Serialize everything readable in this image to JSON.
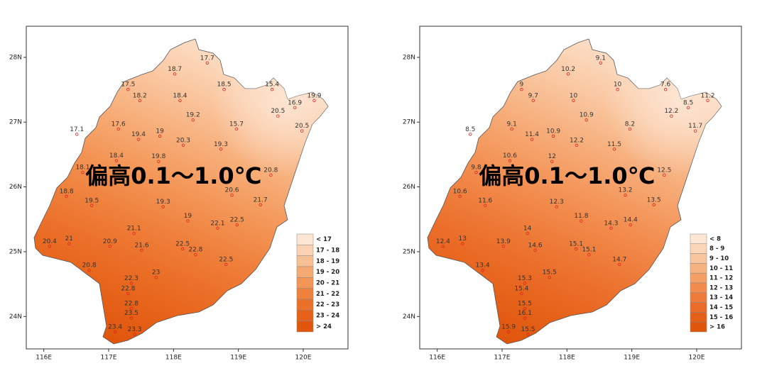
{
  "chart_data": [
    {
      "type": "map",
      "xlim": [
        115.73,
        120.69
      ],
      "ylim": [
        23.5,
        28.48
      ],
      "xticks": [
        {
          "value": 116,
          "label": "116E"
        },
        {
          "value": 117,
          "label": "117E"
        },
        {
          "value": 118,
          "label": "118E"
        },
        {
          "value": 119,
          "label": "119E"
        },
        {
          "value": 120,
          "label": "120E"
        }
      ],
      "yticks": [
        {
          "value": 24,
          "label": "24N"
        },
        {
          "value": 25,
          "label": "25N"
        },
        {
          "value": 26,
          "label": "26N"
        },
        {
          "value": 27,
          "label": "27N"
        },
        {
          "value": 28,
          "label": "28N"
        }
      ],
      "annotation": "偏高0.1～1.0℃",
      "legend_position": "bottom-right",
      "legend": {
        "labels": [
          "< 17",
          "17 - 18",
          "18 - 19",
          "19 - 20",
          "20 - 21",
          "21 - 22",
          "22 - 23",
          "23 - 24",
          "> 24"
        ],
        "colors": [
          "#fde6d4",
          "#fbd3b4",
          "#f9bf94",
          "#f6aa73",
          "#f39556",
          "#ef813d",
          "#eb7029",
          "#e66219",
          "#e0560c"
        ]
      },
      "stations": {
        "x": [
          118.52,
          118.02,
          117.3,
          117.48,
          118.1,
          118.78,
          119.52,
          120.17,
          118.3,
          119.61,
          119.87,
          116.51,
          117.15,
          117.46,
          117.79,
          118.15,
          118.97,
          118.73,
          119.98,
          117.12,
          117.77,
          116.6,
          116.35,
          116.74,
          118.9,
          117.84,
          119.5,
          119.34,
          118.22,
          118.68,
          118.98,
          117.39,
          116.09,
          116.39,
          117.02,
          117.51,
          118.14,
          118.34,
          118.81,
          116.7,
          117.35,
          117.73,
          117.3,
          117.35,
          117.35,
          117.1,
          117.4
        ],
        "y": [
          27.99,
          27.82,
          27.58,
          27.41,
          27.41,
          27.58,
          27.58,
          27.41,
          27.11,
          27.17,
          27.3,
          26.89,
          26.97,
          26.81,
          26.86,
          26.72,
          26.97,
          26.66,
          26.94,
          26.48,
          26.47,
          26.3,
          25.93,
          25.79,
          25.95,
          25.77,
          26.26,
          25.8,
          25.55,
          25.44,
          25.49,
          25.36,
          25.16,
          25.2,
          25.16,
          25.1,
          25.12,
          25.03,
          24.88,
          24.79,
          24.59,
          24.68,
          24.43,
          24.2,
          24.05,
          23.84,
          23.8
        ],
        "values": [
          17.7,
          18.7,
          17.5,
          18.2,
          18.4,
          18.5,
          15.4,
          19.9,
          19.2,
          20.5,
          16.9,
          17.1,
          17.6,
          19.4,
          19,
          20.3,
          15.7,
          19.3,
          20.5,
          18.4,
          19.8,
          18.1,
          18.8,
          19.5,
          20.6,
          19.3,
          20.8,
          21.7,
          19,
          22.1,
          22.5,
          21.1,
          20.4,
          21,
          20.9,
          21.6,
          22.5,
          22.8,
          22.5,
          20.8,
          22.3,
          23,
          22.8,
          22.8,
          23.5,
          23.4,
          23.3
        ]
      }
    },
    {
      "type": "map",
      "xlim": [
        115.73,
        120.69
      ],
      "ylim": [
        23.5,
        28.48
      ],
      "xticks": [
        {
          "value": 116,
          "label": "116E"
        },
        {
          "value": 117,
          "label": "117E"
        },
        {
          "value": 118,
          "label": "118E"
        },
        {
          "value": 119,
          "label": "119E"
        },
        {
          "value": 120,
          "label": "120E"
        }
      ],
      "yticks": [
        {
          "value": 24,
          "label": "24N"
        },
        {
          "value": 25,
          "label": "25N"
        },
        {
          "value": 26,
          "label": "26N"
        },
        {
          "value": 27,
          "label": "27N"
        },
        {
          "value": 28,
          "label": "28N"
        }
      ],
      "annotation": "偏高0.1～1.0℃",
      "legend_position": "bottom-right",
      "legend": {
        "labels": [
          "< 8",
          "8 - 9",
          "9 - 10",
          "10 - 11",
          "11 - 12",
          "12 - 13",
          "13 - 14",
          "14 - 15",
          "15 - 16",
          "> 16"
        ],
        "colors": [
          "#fde6d4",
          "#fbd6b9",
          "#f9c59e",
          "#f7b281",
          "#f59f66",
          "#f28c4e",
          "#ee7b39",
          "#ea6c27",
          "#e56118",
          "#e0560c"
        ]
      },
      "stations": {
        "x": [
          118.52,
          118.02,
          117.3,
          117.48,
          118.1,
          118.78,
          119.52,
          120.17,
          118.3,
          119.61,
          119.87,
          116.51,
          117.15,
          117.46,
          117.79,
          118.15,
          118.97,
          118.73,
          119.98,
          117.12,
          117.77,
          116.6,
          116.35,
          116.74,
          118.9,
          117.84,
          119.5,
          119.34,
          118.22,
          118.68,
          118.98,
          117.39,
          116.09,
          116.39,
          117.02,
          117.51,
          118.14,
          118.34,
          118.81,
          116.7,
          117.35,
          117.73,
          117.3,
          117.35,
          117.35,
          117.1,
          117.4
        ],
        "y": [
          27.99,
          27.82,
          27.58,
          27.41,
          27.41,
          27.58,
          27.58,
          27.41,
          27.11,
          27.17,
          27.3,
          26.89,
          26.97,
          26.81,
          26.86,
          26.72,
          26.97,
          26.66,
          26.94,
          26.48,
          26.47,
          26.3,
          25.93,
          25.79,
          25.95,
          25.77,
          26.26,
          25.8,
          25.55,
          25.44,
          25.49,
          25.36,
          25.16,
          25.2,
          25.16,
          25.1,
          25.12,
          25.03,
          24.88,
          24.79,
          24.59,
          24.68,
          24.43,
          24.2,
          24.05,
          23.84,
          23.8
        ],
        "values": [
          9.1,
          10.2,
          9,
          9.7,
          10,
          10,
          7.6,
          11.2,
          10.9,
          12.2,
          8.5,
          8.5,
          9.1,
          11.4,
          10.9,
          12.2,
          8.2,
          11.5,
          11.7,
          10.6,
          12,
          9.8,
          10.6,
          11.6,
          13.2,
          12.3,
          12.5,
          13.5,
          11.8,
          14.3,
          14.4,
          14,
          12.4,
          13,
          13.9,
          14.6,
          15.1,
          15.1,
          14.7,
          13.4,
          15.3,
          15.5,
          15.4,
          15.5,
          16.1,
          15.9,
          15.5
        ]
      }
    }
  ]
}
